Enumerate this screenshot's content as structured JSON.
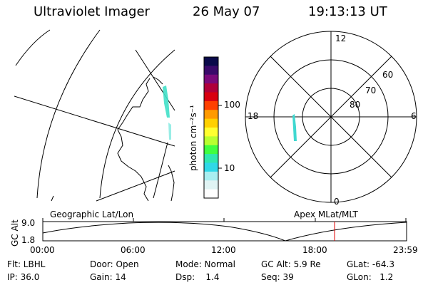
{
  "header": {
    "instrument": "Ultraviolet Imager",
    "date": "26 May 07",
    "time": "19:13:13 UT"
  },
  "colorbar": {
    "unit_label": "photon cm⁻²s⁻¹",
    "tick_100": "100",
    "tick_10": "10",
    "colors": [
      "#0a0a4a",
      "#3a0a6a",
      "#7a0a7a",
      "#b0003a",
      "#d80010",
      "#ff4000",
      "#ff9a00",
      "#ffd000",
      "#ffff30",
      "#b8ff30",
      "#40ff40",
      "#30e8b0",
      "#30d8e8",
      "#a8eef0",
      "#e0f4f4",
      "#ffffff"
    ]
  },
  "polar_plot": {
    "mlt_12": "12",
    "mlt_18": "18",
    "mlt_6": "6",
    "mlt_0": "0",
    "lat_60": "60",
    "lat_70": "70",
    "lat_80": "80"
  },
  "map_labels": {
    "left": "Geographic Lat/Lon",
    "right": "Apex MLat/MLT"
  },
  "altitude_plot": {
    "axis_title": "GC Alt",
    "y_max": "9.0",
    "y_min": "1.8",
    "x_ticks": [
      "00:00",
      "06:00",
      "12:00",
      "18:00",
      "23:59"
    ],
    "current_marker_color": "#e00000"
  },
  "status": {
    "row1": [
      {
        "label": "Flt: LBHL"
      },
      {
        "label": "Door: Open"
      },
      {
        "label": "Mode: Normal"
      },
      {
        "label": "GC Alt: 5.9 Re"
      },
      {
        "label": "GLat: -64.3"
      }
    ],
    "row2": [
      {
        "label": "IP: 36.0"
      },
      {
        "label": "Gain: 14"
      },
      {
        "label": "Dsp:    1.4"
      },
      {
        "label": "Seq: 39"
      },
      {
        "label": "GLon:   1.2"
      }
    ]
  }
}
